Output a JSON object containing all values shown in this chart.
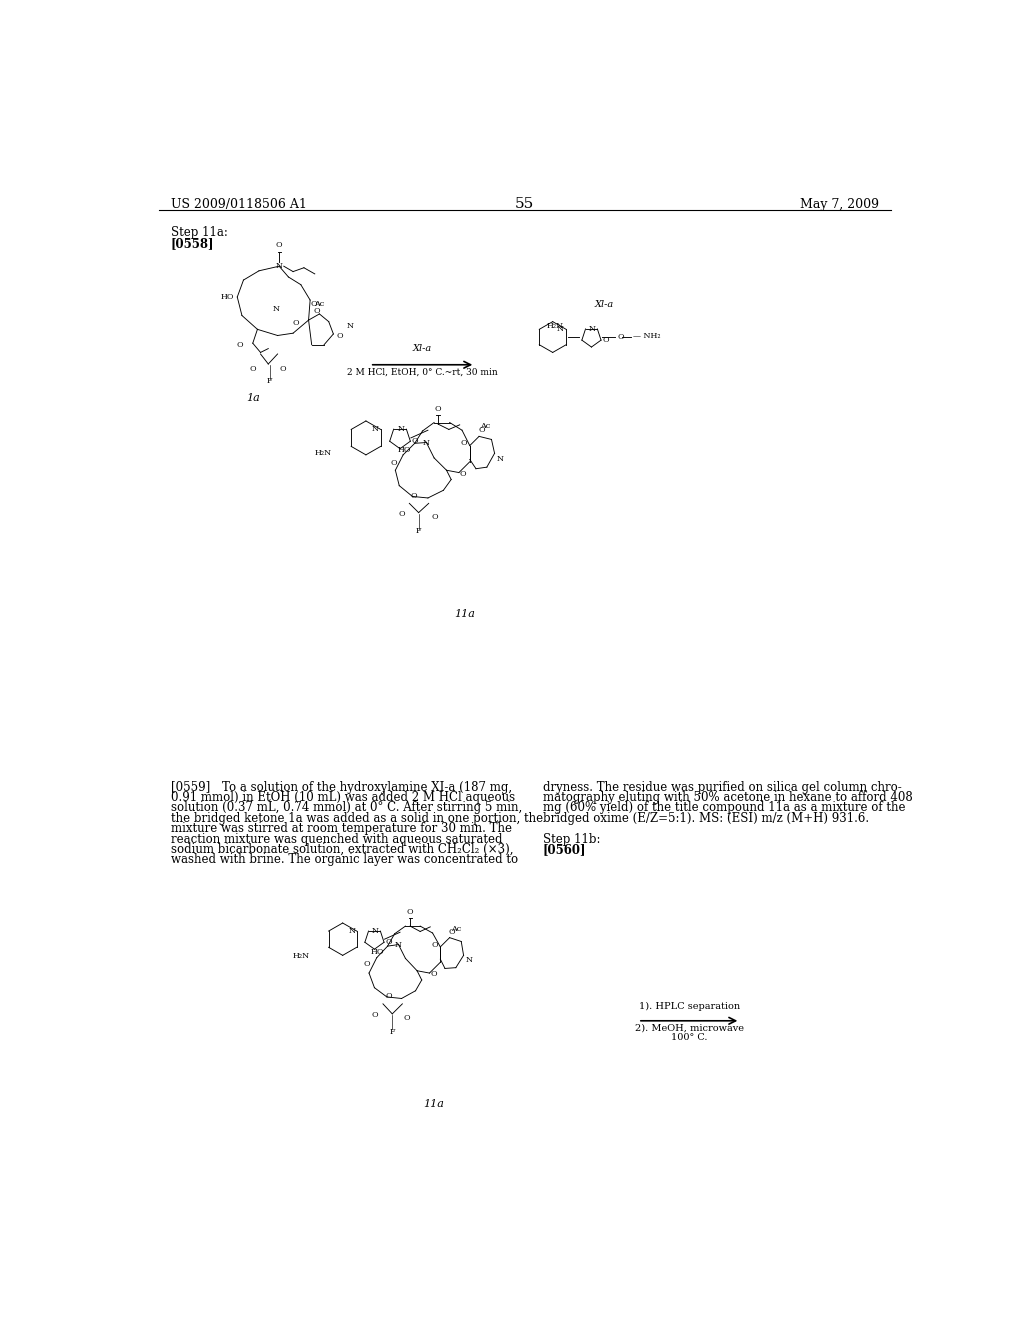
{
  "page_header_left": "US 2009/0118506 A1",
  "page_header_right": "May 7, 2009",
  "page_number": "55",
  "step_label": "Step 11a:",
  "step_bold": "[0558]",
  "step_label_2": "Step 11b:",
  "step_bold_2": "[0560]",
  "background_color": "#ffffff",
  "text_color": "#000000",
  "font_size_header": 9,
  "font_size_body": 8.5,
  "font_size_page_num": 11,
  "label_1a": "1a",
  "label_11a_1": "11a",
  "label_11a_2": "11a",
  "reaction_arrow_label": "Xl-a",
  "reaction_arrow_sublabel": "2 M HCl, EtOH, 0° C.~rt, 30 min",
  "reaction_arrow_label_2": "1). HPLC separation",
  "reaction_arrow_sublabel_2a": "2). MeOH, microwave",
  "reaction_arrow_sublabel_2b": "100° C.",
  "left_col_lines": [
    "[0559] To a solution of the hydroxylamine XI-a (187 mg,",
    "0.91 mmol) in EtOH (10 mL) was added 2 M HCl aqueous",
    "solution (0.37 mL, 0.74 mmol) at 0° C. After stirring 5 min,",
    "the bridged ketone 1a was added as a solid in one portion, the",
    "mixture was stirred at room temperature for 30 min. The",
    "reaction mixture was quenched with aqueous saturated",
    "sodium bicarbonate solution, extracted with CH₂Cl₂ (×3),",
    "washed with brine. The organic layer was concentrated to"
  ],
  "right_col_lines": [
    "dryness. The residue was purified on silica gel column chro-",
    "matography eluting with 50% acetone in hexane to afford 408",
    "mg (60% yield) of the title compound 11a as a mixture of the",
    "bridged oxime (E/Z=5:1). MS: (ESI) m/z (M+H) 931.6.",
    "",
    "Step 11b:",
    "[0560]"
  ]
}
